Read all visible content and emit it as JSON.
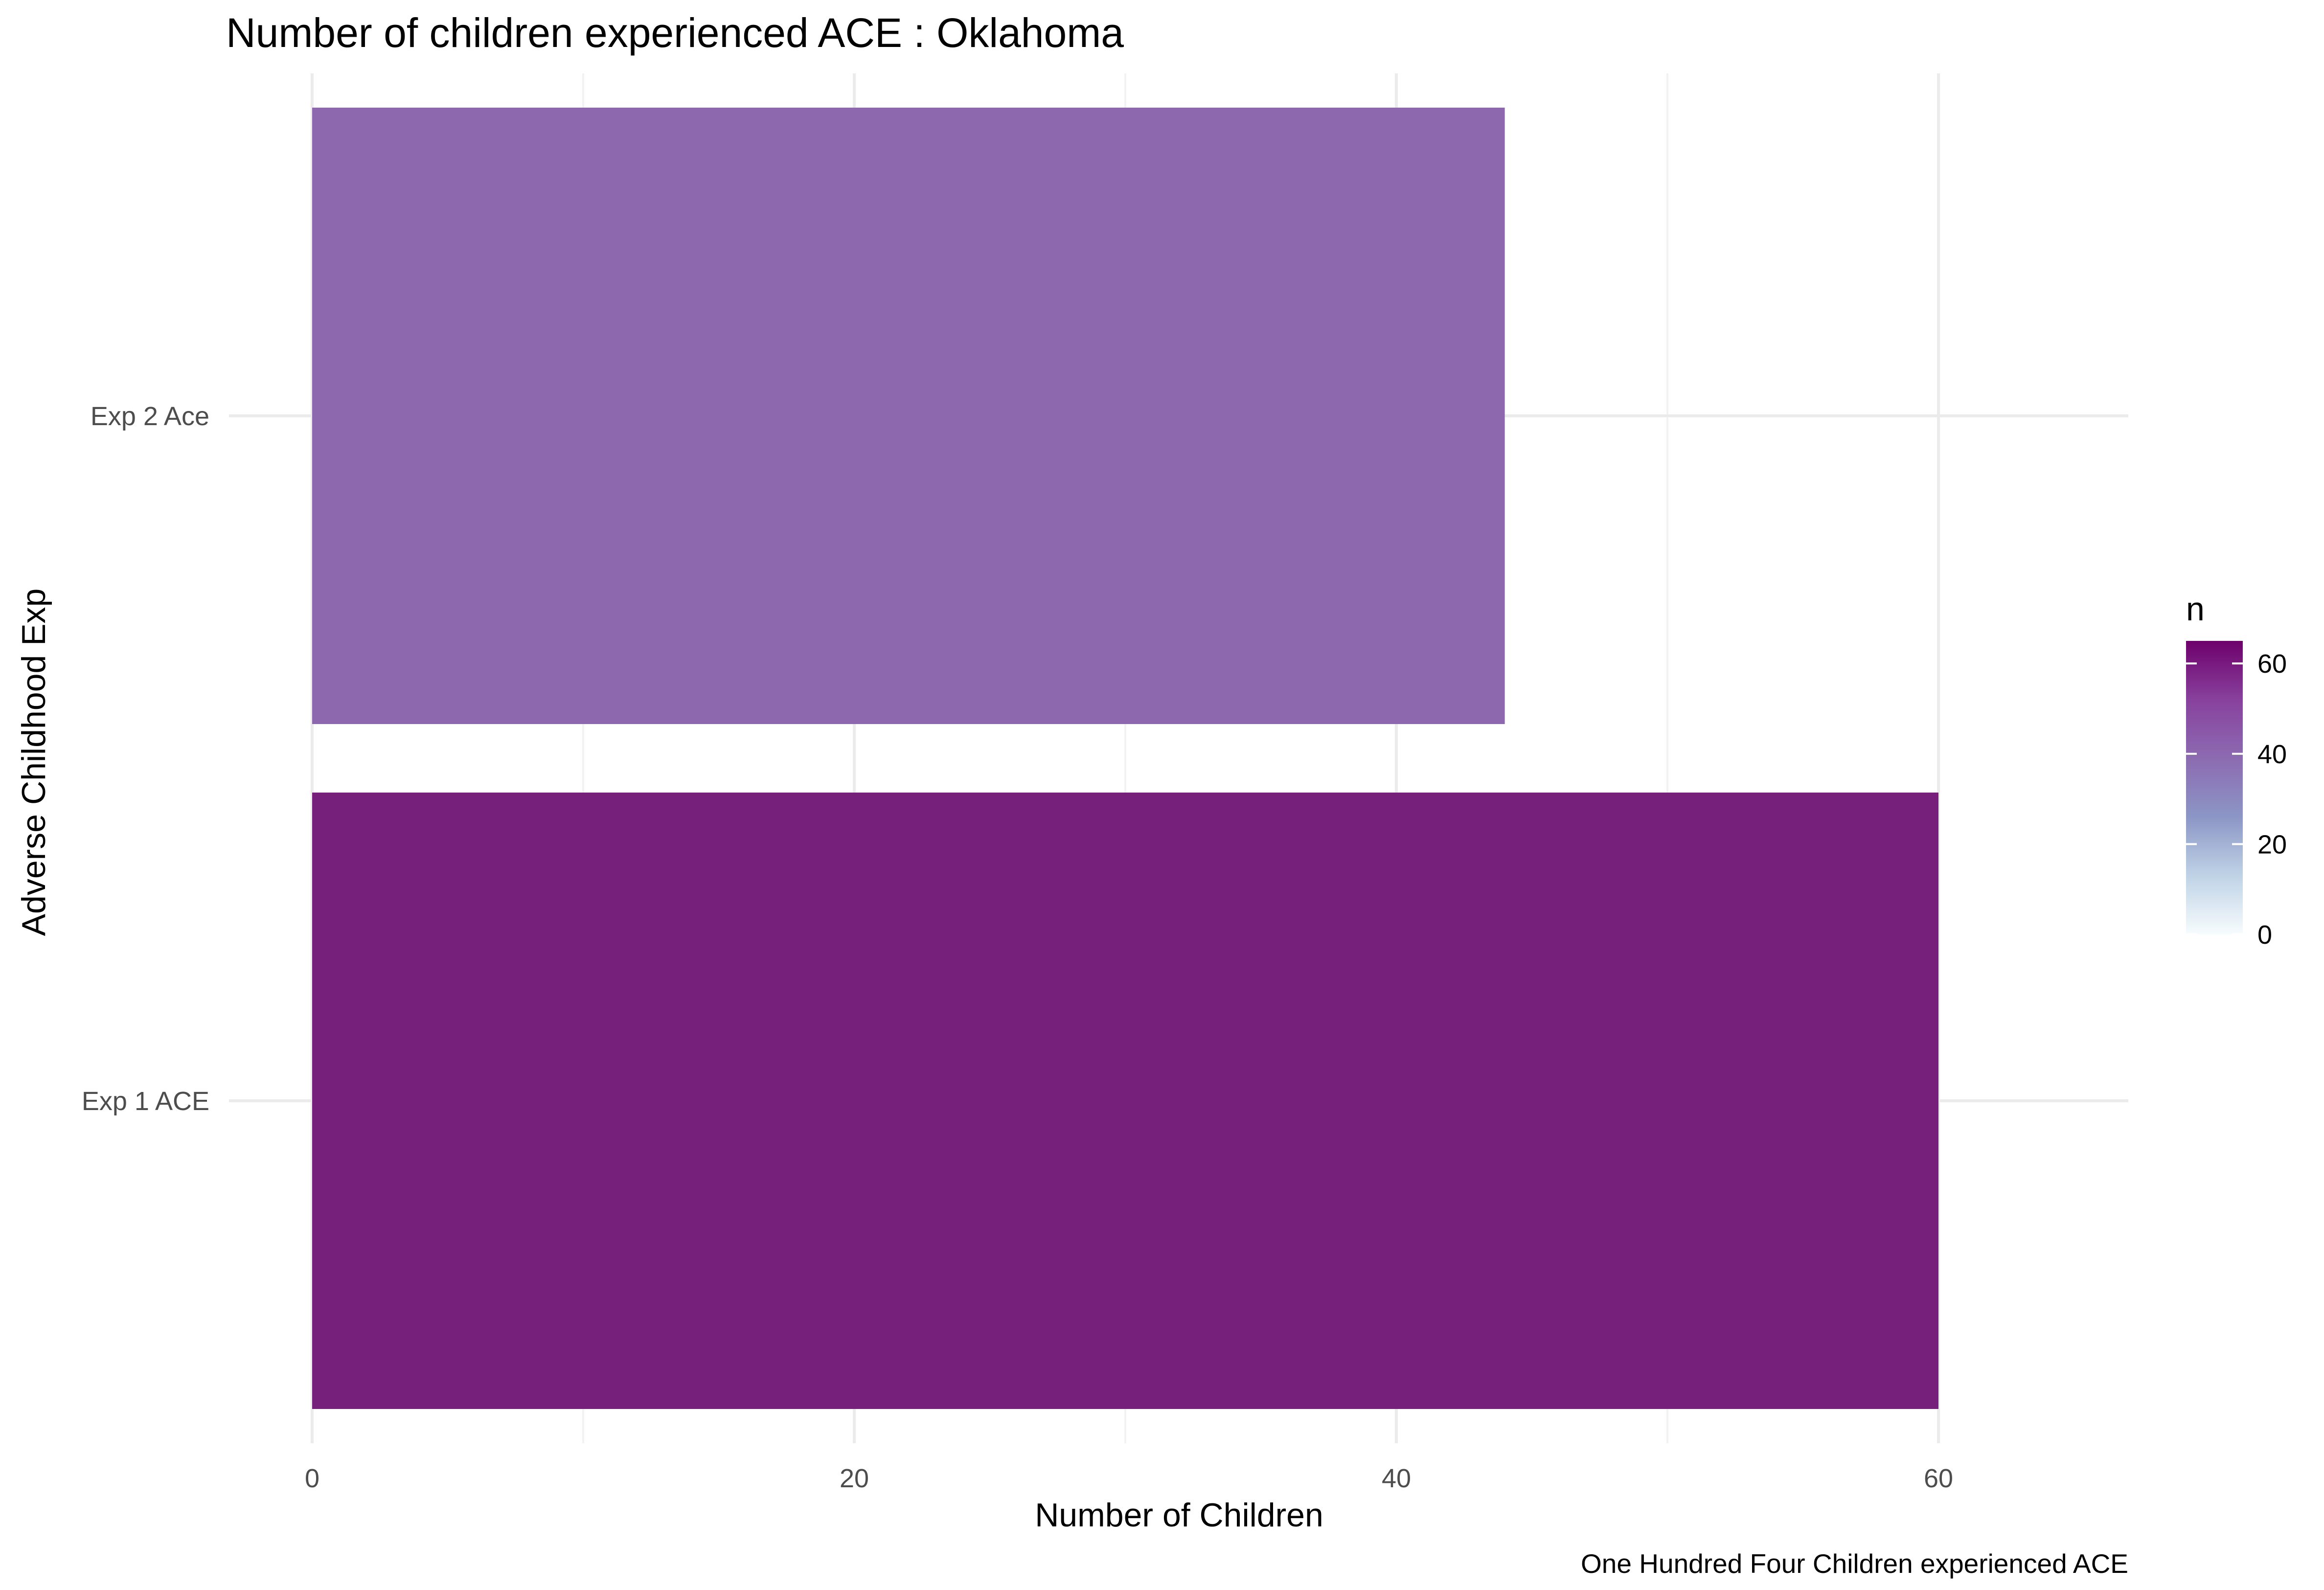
{
  "chart_data": {
    "type": "bar",
    "orientation": "horizontal",
    "title": "Number of children experienced ACE : Oklahoma",
    "xlabel": "Number of Children",
    "ylabel": "Adverse Childhood Exp",
    "caption": "One Hundred Four Children experienced ACE",
    "categories": [
      "Exp 1 ACE",
      "Exp 2 Ace"
    ],
    "values": [
      60,
      44
    ],
    "xlim": [
      0,
      67
    ],
    "x_ticks": [
      0,
      20,
      40,
      60
    ],
    "x_tick_labels": [
      "0",
      "20",
      "40",
      "60"
    ],
    "grid": true,
    "legend": {
      "title": "n",
      "type": "colorbar",
      "placement": "right",
      "range": [
        0,
        65
      ],
      "ticks": [
        0,
        20,
        40,
        60
      ],
      "tick_labels": [
        "0",
        "20",
        "40",
        "60"
      ],
      "colors": [
        "#f7fcfd",
        "#bfd3e6",
        "#8c96c6",
        "#8c6bb1",
        "#88419d",
        "#6e016b"
      ]
    },
    "bar_colors": [
      "#76207b",
      "#8e68ae"
    ]
  }
}
